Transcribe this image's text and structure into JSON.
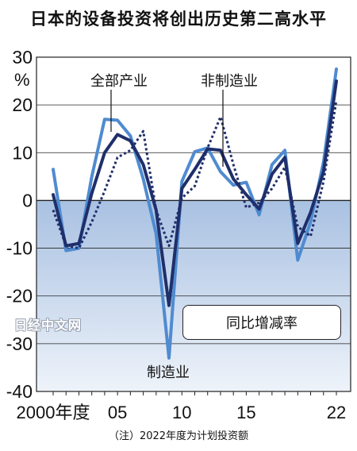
{
  "title": "日本的设备投资将创出历史第二高水平",
  "note": "（注）2022年度为计划投资额",
  "watermark": "日经中文网",
  "legend_box": "同比增减率",
  "chart_data": {
    "type": "line",
    "title": "日本的设备投资将创出历史第二高水平",
    "ylabel": "%",
    "ylim": [
      -40,
      30
    ],
    "yticks": [
      30,
      20,
      10,
      0,
      -10,
      -20,
      -30,
      -40
    ],
    "xlim": [
      2000,
      2022
    ],
    "xtick_labels": [
      {
        "x": 2000,
        "label": "2000年度"
      },
      {
        "x": 2005,
        "label": "05"
      },
      {
        "x": 2010,
        "label": "10"
      },
      {
        "x": 2015,
        "label": "15"
      },
      {
        "x": 2022,
        "label": "22"
      }
    ],
    "x": [
      2000,
      2001,
      2002,
      2003,
      2004,
      2005,
      2006,
      2007,
      2008,
      2009,
      2010,
      2011,
      2012,
      2013,
      2014,
      2015,
      2016,
      2017,
      2018,
      2019,
      2020,
      2021,
      2022
    ],
    "series": [
      {
        "name": "全部产业",
        "style": "solid",
        "color": "#1f2f6b",
        "values": [
          1.2,
          -9.5,
          -9.0,
          1.5,
          10,
          13.8,
          12.5,
          7.5,
          -2,
          -22,
          2.5,
          6.5,
          10.8,
          10.5,
          4.5,
          1.2,
          -1.8,
          5.5,
          9,
          -9,
          -2.5,
          6,
          25
        ]
      },
      {
        "name": "非制造业",
        "style": "dotted",
        "color": "#1f2f6b",
        "values": [
          -2,
          -9.5,
          -10,
          -4.5,
          2,
          9,
          10.5,
          14.5,
          -2,
          -9.5,
          0.5,
          3,
          11,
          17.5,
          7.5,
          -1.5,
          -0.5,
          2.5,
          7,
          -5.5,
          -7.5,
          4,
          21
        ]
      },
      {
        "name": "制造业",
        "style": "solid",
        "color": "#4f8bd0",
        "values": [
          6.5,
          -10.5,
          -10,
          5,
          17,
          16.8,
          13.5,
          4.5,
          -7,
          -33,
          4,
          10.2,
          11,
          6,
          3.2,
          3.8,
          -3,
          7.5,
          10.5,
          -12.5,
          -4.5,
          8,
          27.5
        ]
      }
    ],
    "series_labels": [
      "全部产业",
      "非制造业",
      "制造业"
    ]
  }
}
